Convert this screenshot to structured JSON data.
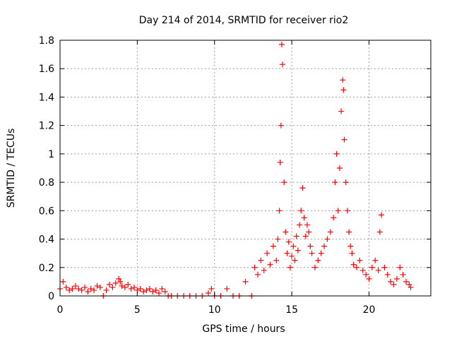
{
  "chart_data": {
    "type": "scatter",
    "title": "Day 214 of 2014, SRMTID for receiver rio2",
    "xlabel": "GPS time / hours",
    "ylabel": "SRMTID / TECUs",
    "xlim": [
      0,
      24
    ],
    "ylim": [
      0,
      1.8
    ],
    "xticks": [
      0,
      5,
      10,
      15,
      20
    ],
    "yticks": [
      0,
      0.2,
      0.4,
      0.6,
      0.8,
      1,
      1.2,
      1.4,
      1.6,
      1.8
    ],
    "xtick_labels": [
      "0",
      "5",
      "10",
      "15",
      "20"
    ],
    "ytick_labels": [
      "0",
      "0.2",
      "0.4",
      "0.6",
      "0.8",
      "1",
      "1.2",
      "1.4",
      "1.6",
      "1.8"
    ],
    "grid": true,
    "marker": "+",
    "colors": {
      "points": "#ff0000",
      "grid": "#a0a0a0",
      "axes": "#000000"
    },
    "series": [
      {
        "name": "rio2",
        "x": [
          0.0,
          0.2,
          0.4,
          0.6,
          0.8,
          1.0,
          1.2,
          1.4,
          1.6,
          1.8,
          2.0,
          2.2,
          2.4,
          2.6,
          2.8,
          3.0,
          3.2,
          3.4,
          3.6,
          3.8,
          3.9,
          4.0,
          4.2,
          4.4,
          4.6,
          4.8,
          5.0,
          5.2,
          5.4,
          5.6,
          5.8,
          6.0,
          6.2,
          6.4,
          6.6,
          6.8,
          7.0,
          7.2,
          7.6,
          8.0,
          8.4,
          8.8,
          9.2,
          9.6,
          9.8,
          10.0,
          10.4,
          10.8,
          11.2,
          11.6,
          12.0,
          12.4,
          12.6,
          12.8,
          13.0,
          13.2,
          13.4,
          13.6,
          13.8,
          14.0,
          14.1,
          14.2,
          14.25,
          14.3,
          14.35,
          14.4,
          14.5,
          14.6,
          14.7,
          14.8,
          14.9,
          15.0,
          15.1,
          15.2,
          15.3,
          15.4,
          15.5,
          15.6,
          15.7,
          15.8,
          15.9,
          16.0,
          16.1,
          16.2,
          16.3,
          16.5,
          16.7,
          16.9,
          17.1,
          17.3,
          17.5,
          17.7,
          17.8,
          17.9,
          18.0,
          18.1,
          18.2,
          18.3,
          18.35,
          18.4,
          18.5,
          18.6,
          18.7,
          18.8,
          18.9,
          19.0,
          19.2,
          19.4,
          19.6,
          19.8,
          20.0,
          20.2,
          20.4,
          20.6,
          20.7,
          20.8,
          21.0,
          21.2,
          21.4,
          21.6,
          21.8,
          22.0,
          22.2,
          22.4,
          22.6,
          22.7
        ],
        "y": [
          0.05,
          0.1,
          0.06,
          0.04,
          0.05,
          0.07,
          0.05,
          0.04,
          0.06,
          0.03,
          0.05,
          0.04,
          0.07,
          0.06,
          0.0,
          0.04,
          0.08,
          0.06,
          0.09,
          0.12,
          0.1,
          0.07,
          0.06,
          0.08,
          0.05,
          0.06,
          0.04,
          0.05,
          0.03,
          0.04,
          0.05,
          0.03,
          0.04,
          0.02,
          0.05,
          0.03,
          0.0,
          0.0,
          0.0,
          0.0,
          0.0,
          0.0,
          0.0,
          0.02,
          0.05,
          0.0,
          0.0,
          0.05,
          0.0,
          0.0,
          0.1,
          0.0,
          0.2,
          0.15,
          0.25,
          0.18,
          0.3,
          0.22,
          0.35,
          0.25,
          0.4,
          0.6,
          0.94,
          1.2,
          1.77,
          1.63,
          0.8,
          0.45,
          0.3,
          0.38,
          0.2,
          0.28,
          0.35,
          0.25,
          0.42,
          0.32,
          0.5,
          0.6,
          0.76,
          0.55,
          0.42,
          0.5,
          0.45,
          0.35,
          0.3,
          0.2,
          0.25,
          0.3,
          0.35,
          0.4,
          0.45,
          0.55,
          0.8,
          1.0,
          0.6,
          0.9,
          1.3,
          1.52,
          1.45,
          1.1,
          0.8,
          0.6,
          0.45,
          0.35,
          0.3,
          0.22,
          0.2,
          0.25,
          0.18,
          0.15,
          0.12,
          0.2,
          0.25,
          0.18,
          0.45,
          0.57,
          0.2,
          0.15,
          0.1,
          0.08,
          0.12,
          0.2,
          0.15,
          0.1,
          0.08,
          0.06
        ]
      }
    ]
  }
}
